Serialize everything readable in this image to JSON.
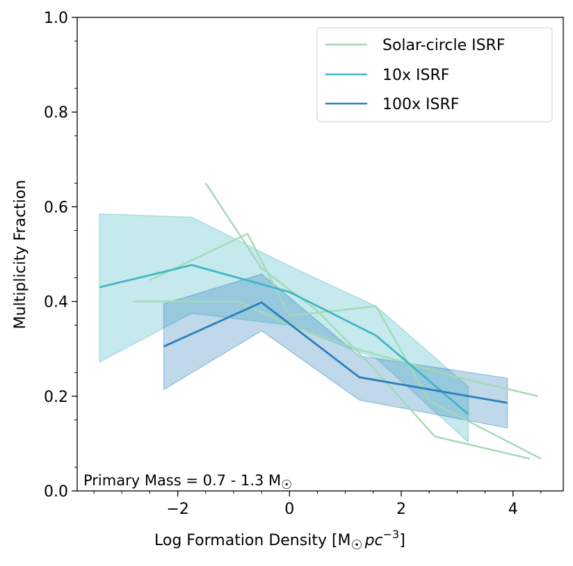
{
  "chart_data": {
    "type": "line",
    "title": "",
    "xlabel_main": "Log Formation Density [M",
    "xlabel_sun": "☉",
    "xlabel_unit": "pc",
    "xlabel_exp": "−3",
    "xlabel_close": "]",
    "ylabel": "Multiplicity Fraction",
    "xlim": [
      -3.8,
      4.9
    ],
    "ylim": [
      0.0,
      1.0
    ],
    "x_ticks": [
      -2,
      0,
      2,
      4
    ],
    "x_tick_labels": [
      "−2",
      "0",
      "2",
      "4"
    ],
    "y_ticks": [
      0.0,
      0.2,
      0.4,
      0.6,
      0.8,
      1.0
    ],
    "y_tick_labels": [
      "0.0",
      "0.2",
      "0.4",
      "0.6",
      "0.8",
      "1.0"
    ],
    "legend_position": "top-right",
    "annotation_prefix": "Primary Mass = 0.7 - 1.3 M",
    "annotation_sun": "☉",
    "series": [
      {
        "name": "Solar-circle ISRF",
        "color": "#a1dab4",
        "lines": [
          {
            "x": [
              -1.5,
              -0.5,
              0.5,
              1.5,
              2.6,
              4.3
            ],
            "y": [
              0.65,
              0.47,
              0.38,
              0.26,
              0.115,
              0.068
            ]
          },
          {
            "x": [
              -2.5,
              -0.75,
              0.0,
              1.55,
              2.5,
              4.5
            ],
            "y": [
              0.445,
              0.543,
              0.37,
              0.39,
              0.19,
              0.068
            ]
          },
          {
            "x": [
              -2.8,
              -0.9,
              0.0,
              1.2,
              3.0,
              4.45
            ],
            "y": [
              0.4,
              0.4,
              0.35,
              0.3,
              0.24,
              0.2
            ]
          }
        ]
      },
      {
        "name": "10x ISRF",
        "color": "#41b6c4",
        "lines": [
          {
            "x": [
              -3.4,
              -1.75,
              0.0,
              1.55,
              3.2
            ],
            "y": [
              0.43,
              0.477,
              0.42,
              0.328,
              0.162
            ]
          }
        ],
        "band": {
          "x": [
            -3.4,
            -1.75,
            0.0,
            1.55,
            3.2
          ],
          "upper": [
            0.585,
            0.578,
            0.475,
            0.39,
            0.22
          ],
          "lower": [
            0.272,
            0.375,
            0.35,
            0.28,
            0.103
          ]
        }
      },
      {
        "name": "100x ISRF",
        "color": "#2c7fb8",
        "lines": [
          {
            "x": [
              -2.25,
              -0.5,
              1.25,
              3.9
            ],
            "y": [
              0.305,
              0.398,
              0.24,
              0.186
            ]
          }
        ],
        "band": {
          "x": [
            -2.25,
            -0.5,
            1.25,
            3.9
          ],
          "upper": [
            0.395,
            0.458,
            0.285,
            0.238
          ],
          "lower": [
            0.214,
            0.338,
            0.192,
            0.133
          ]
        }
      }
    ]
  }
}
